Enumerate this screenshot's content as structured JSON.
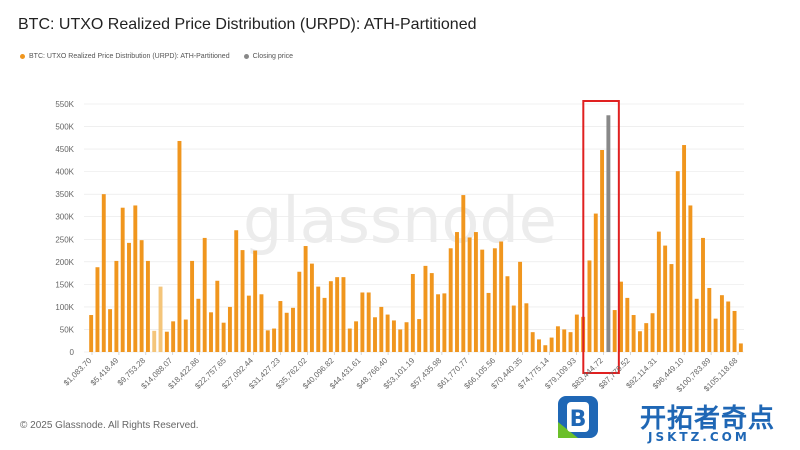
{
  "title": "BTC: UTXO Realized Price Distribution (URPD): ATH-Partitioned",
  "legend": {
    "series_label": "BTC: UTXO Realized Price Distribution (URPD): ATH-Partitioned",
    "closing_label": "Closing price"
  },
  "footer": "© 2025 Glassnode. All Rights Reserved.",
  "watermark": "glassnode",
  "logo_text": {
    "main": "开拓者奇点",
    "sub": "JSKTZ.COM"
  },
  "colors": {
    "bar": "#f0961e",
    "bar_light": "#f4c57a",
    "closing": "#888888",
    "highlight_box": "#e02020",
    "grid": "#e6e6e6",
    "axis_text": "#666666",
    "brand_blue": "#1f67b5",
    "brand_green": "#6bbf2a"
  },
  "chart_data": {
    "type": "bar",
    "ylim": [
      0,
      550000
    ],
    "y_ticks": [
      "0",
      "50K",
      "100K",
      "150K",
      "200K",
      "250K",
      "300K",
      "350K",
      "400K",
      "450K",
      "500K",
      "550K"
    ],
    "x_tick_labels": [
      "$1,083.70",
      "$5,418.49",
      "$9,753.28",
      "$14,088.07",
      "$18,422.86",
      "$22,757.65",
      "$27,092.44",
      "$31,427.23",
      "$35,762.02",
      "$40,096.82",
      "$44,431.61",
      "$48,766.40",
      "$53,101.19",
      "$57,435.98",
      "$61,770.77",
      "$66,105.56",
      "$70,440.35",
      "$74,775.14",
      "$79,109.93",
      "$83,444.72",
      "$87,779.52",
      "$92,114.31",
      "$96,449.10",
      "$100,783.89",
      "$105,118.68"
    ],
    "series": [
      {
        "name": "BTC: UTXO Realized Price Distribution (URPD): ATH-Partitioned",
        "values": [
          82000,
          188000,
          350000,
          95000,
          202000,
          320000,
          242000,
          325000,
          248000,
          202000,
          47000,
          145000,
          45000,
          68000,
          468000,
          72000,
          202000,
          118000,
          253000,
          88000,
          158000,
          65000,
          100000,
          270000,
          226000,
          125000,
          225000,
          128000,
          48000,
          52000,
          113000,
          87000,
          98000,
          178000,
          235000,
          196000,
          145000,
          120000,
          157000,
          166000,
          166000,
          52000,
          68000,
          132000,
          132000,
          77000,
          100000,
          83000,
          70000,
          50000,
          66000,
          173000,
          73000,
          191000,
          175000,
          128000,
          130000,
          230000,
          266000,
          348000,
          254000,
          266000,
          227000,
          131000,
          230000,
          245000,
          168000,
          103000,
          200000,
          108000,
          44000,
          28000,
          15000,
          32000,
          57000,
          50000,
          44000,
          83000,
          78000,
          203000,
          307000,
          448000,
          0,
          93000,
          156000,
          120000,
          82000,
          46000,
          64000,
          86000,
          267000,
          236000,
          195000,
          401000,
          459000,
          325000,
          118000,
          253000,
          142000,
          74000,
          126000,
          112000,
          91000,
          19000
        ]
      },
      {
        "name": "Closing price",
        "index": 82,
        "value": 525000
      }
    ],
    "light_bar_indices": [
      10,
      11
    ],
    "highlight_index_range": [
      79,
      83
    ]
  }
}
